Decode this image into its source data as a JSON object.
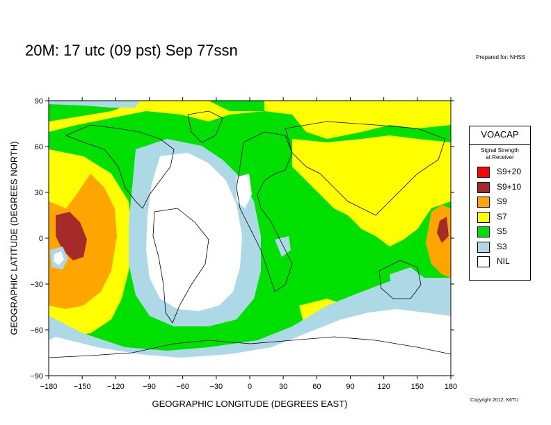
{
  "title": "20M:  17 utc (09 pst) Sep 77ssn",
  "prepared_for": "Prepared for: NHSS",
  "copyright": "Copyright 2012, K6TU",
  "axes": {
    "xlabel": "GEOGRAPHIC LONGITUDE (DEGREES EAST)",
    "ylabel": "GEOGRAPHIC LATITUDE (DEGREES NORTH)",
    "xticks": [
      "−180",
      "−150",
      "−120",
      "−90",
      "−60",
      "−30",
      "0",
      "30",
      "60",
      "90",
      "120",
      "150",
      "180"
    ],
    "yticks": [
      "90",
      "60",
      "30",
      "0",
      "−30",
      "−60",
      "−90"
    ]
  },
  "legend": {
    "title": "VOACAP",
    "subtitle_line1": "Signal Strength",
    "subtitle_line2": "at Receiver",
    "items": [
      {
        "label": "S9+20",
        "color": "#ff0000"
      },
      {
        "label": "S9+10",
        "color": "#a52a2a"
      },
      {
        "label": "S9",
        "color": "#ffa500"
      },
      {
        "label": "S7",
        "color": "#ffff00"
      },
      {
        "label": "S5",
        "color": "#00e000"
      },
      {
        "label": "S3",
        "color": "#add8e6"
      },
      {
        "label": "NIL",
        "color": "#ffffff"
      }
    ]
  }
}
